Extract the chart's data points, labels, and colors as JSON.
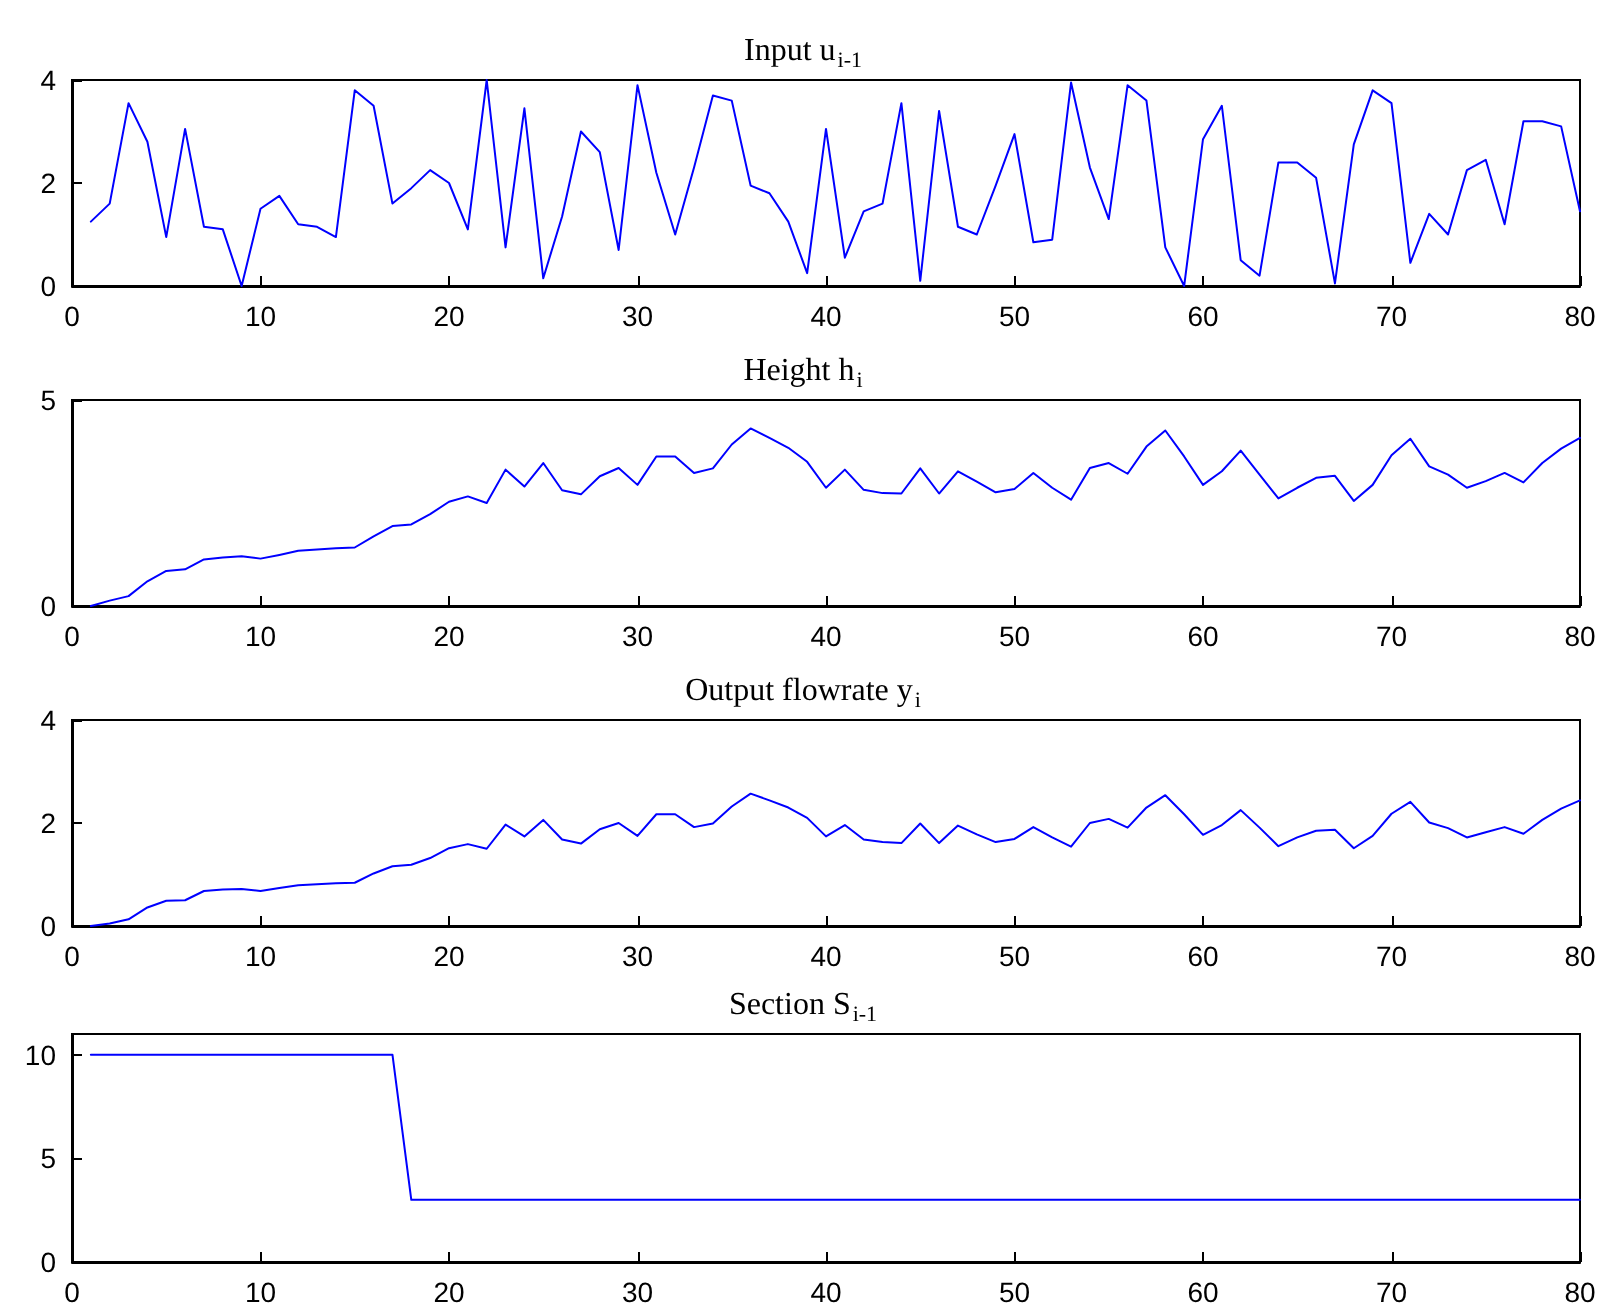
{
  "chart_data": [
    {
      "type": "line",
      "title": "Input u$_{i-1}$",
      "color": "#0000ff",
      "marker": "none",
      "grid": false,
      "xlim": [
        0,
        80
      ],
      "xticks": [
        0,
        10,
        20,
        30,
        40,
        50,
        60,
        70,
        80
      ],
      "ylim": [
        0,
        4
      ],
      "yticks": [
        0,
        2,
        4
      ],
      "x": [
        1,
        2,
        3,
        4,
        5,
        6,
        7,
        8,
        9,
        10,
        11,
        12,
        13,
        14,
        15,
        16,
        17,
        18,
        19,
        20,
        21,
        22,
        23,
        24,
        25,
        26,
        27,
        28,
        29,
        30,
        31,
        32,
        33,
        34,
        35,
        36,
        37,
        38,
        39,
        40,
        41,
        42,
        43,
        44,
        45,
        46,
        47,
        48,
        49,
        50,
        51,
        52,
        53,
        54,
        55,
        56,
        57,
        58,
        59,
        60,
        61,
        62,
        63,
        64,
        65,
        66,
        67,
        68,
        69,
        70,
        71,
        72,
        73,
        74,
        75,
        76,
        77,
        78,
        79,
        80
      ],
      "values": [
        1.25,
        1.6,
        3.55,
        2.8,
        0.95,
        3.05,
        1.15,
        1.1,
        0,
        1.5,
        1.75,
        1.2,
        1.15,
        0.95,
        3.8,
        3.5,
        1.6,
        1.9,
        2.25,
        2.0,
        1.1,
        4.0,
        0.75,
        3.45,
        0.15,
        1.35,
        3.0,
        2.6,
        0.7,
        3.9,
        2.2,
        1.0,
        2.3,
        3.7,
        3.6,
        1.95,
        1.8,
        1.25,
        0.25,
        3.05,
        0.55,
        1.45,
        1.6,
        3.55,
        0.1,
        3.4,
        1.15,
        1.0,
        1.95,
        2.95,
        0.85,
        0.9,
        3.95,
        2.3,
        1.3,
        3.9,
        3.6,
        0.75,
        0,
        2.85,
        3.5,
        0.5,
        0.2,
        2.4,
        2.4,
        2.1,
        0.05,
        2.75,
        3.8,
        3.55,
        0.45,
        1.4,
        1.0,
        2.25,
        2.45,
        1.2,
        3.2,
        3.2,
        3.1,
        1.45
      ]
    },
    {
      "type": "line",
      "title": "Height h$_{i}$",
      "color": "#0000ff",
      "marker": "none",
      "grid": false,
      "xlim": [
        0,
        80
      ],
      "xticks": [
        0,
        10,
        20,
        30,
        40,
        50,
        60,
        70,
        80
      ],
      "ylim": [
        0,
        5
      ],
      "yticks": [
        0,
        5
      ],
      "x": [
        1,
        2,
        3,
        4,
        5,
        6,
        7,
        8,
        9,
        10,
        11,
        12,
        13,
        14,
        15,
        16,
        17,
        18,
        19,
        20,
        21,
        22,
        23,
        24,
        25,
        26,
        27,
        28,
        29,
        30,
        31,
        32,
        33,
        34,
        35,
        36,
        37,
        38,
        39,
        40,
        41,
        42,
        43,
        44,
        45,
        46,
        47,
        48,
        49,
        50,
        51,
        52,
        53,
        54,
        55,
        56,
        57,
        58,
        59,
        60,
        61,
        62,
        63,
        64,
        65,
        66,
        67,
        68,
        69,
        70,
        71,
        72,
        73,
        74,
        75,
        76,
        77,
        78,
        79,
        80
      ],
      "values": [
        0,
        0.13,
        0.24,
        0.6,
        0.85,
        0.89,
        1.13,
        1.18,
        1.21,
        1.15,
        1.24,
        1.34,
        1.37,
        1.4,
        1.42,
        1.69,
        1.94,
        1.98,
        2.23,
        2.53,
        2.66,
        2.5,
        3.31,
        2.9,
        3.47,
        2.81,
        2.71,
        3.15,
        3.35,
        2.94,
        3.63,
        3.63,
        3.23,
        3.34,
        3.92,
        4.31,
        4.08,
        3.84,
        3.5,
        2.87,
        3.31,
        2.82,
        2.74,
        2.73,
        3.34,
        2.73,
        3.27,
        3.02,
        2.76,
        2.84,
        3.23,
        2.87,
        2.58,
        3.35,
        3.47,
        3.21,
        3.87,
        4.26,
        3.63,
        2.94,
        3.27,
        3.77,
        3.19,
        2.61,
        2.87,
        3.11,
        3.16,
        2.55,
        2.94,
        3.66,
        4.06,
        3.39,
        3.19,
        2.87,
        3.03,
        3.23,
        3.0,
        3.47,
        3.82,
        4.08
      ]
    },
    {
      "type": "line",
      "title": "Output flowrate y$_{i}$",
      "color": "#0000ff",
      "marker": "none",
      "grid": false,
      "xlim": [
        0,
        80
      ],
      "xticks": [
        0,
        10,
        20,
        30,
        40,
        50,
        60,
        70,
        80
      ],
      "ylim": [
        0,
        4
      ],
      "yticks": [
        0,
        2,
        4
      ],
      "x": [
        1,
        2,
        3,
        4,
        5,
        6,
        7,
        8,
        9,
        10,
        11,
        12,
        13,
        14,
        15,
        16,
        17,
        18,
        19,
        20,
        21,
        22,
        23,
        24,
        25,
        26,
        27,
        28,
        29,
        30,
        31,
        32,
        33,
        34,
        35,
        36,
        37,
        38,
        39,
        40,
        41,
        42,
        43,
        44,
        45,
        46,
        47,
        48,
        49,
        50,
        51,
        52,
        53,
        54,
        55,
        56,
        57,
        58,
        59,
        60,
        61,
        62,
        63,
        64,
        65,
        66,
        67,
        68,
        69,
        70,
        71,
        72,
        73,
        74,
        75,
        76,
        77,
        78,
        79,
        80
      ],
      "values": [
        0,
        0.05,
        0.13,
        0.36,
        0.49,
        0.5,
        0.68,
        0.71,
        0.72,
        0.68,
        0.74,
        0.79,
        0.81,
        0.83,
        0.84,
        1.02,
        1.16,
        1.19,
        1.32,
        1.51,
        1.59,
        1.5,
        1.97,
        1.74,
        2.06,
        1.68,
        1.6,
        1.88,
        2.0,
        1.75,
        2.17,
        2.17,
        1.92,
        1.99,
        2.32,
        2.57,
        2.44,
        2.3,
        2.1,
        1.74,
        1.96,
        1.68,
        1.63,
        1.61,
        1.99,
        1.61,
        1.95,
        1.78,
        1.63,
        1.69,
        1.92,
        1.72,
        1.54,
        2.0,
        2.08,
        1.91,
        2.3,
        2.54,
        2.17,
        1.77,
        1.96,
        2.25,
        1.91,
        1.55,
        1.72,
        1.85,
        1.87,
        1.51,
        1.75,
        2.18,
        2.41,
        2.01,
        1.9,
        1.72,
        1.82,
        1.92,
        1.79,
        2.06,
        2.28,
        2.44
      ]
    },
    {
      "type": "line",
      "title": "Section S$_{i-1}$",
      "color": "#0000ff",
      "marker": "none",
      "grid": false,
      "xlim": [
        0,
        80
      ],
      "xticks": [
        0,
        10,
        20,
        30,
        40,
        50,
        60,
        70,
        80
      ],
      "ylim": [
        0,
        11
      ],
      "yticks": [
        0,
        5,
        10
      ],
      "x": [
        1,
        2,
        3,
        4,
        5,
        6,
        7,
        8,
        9,
        10,
        11,
        12,
        13,
        14,
        15,
        16,
        17,
        18,
        19,
        20,
        21,
        22,
        23,
        24,
        25,
        26,
        27,
        28,
        29,
        30,
        31,
        32,
        33,
        34,
        35,
        36,
        37,
        38,
        39,
        40,
        41,
        42,
        43,
        44,
        45,
        46,
        47,
        48,
        49,
        50,
        51,
        52,
        53,
        54,
        55,
        56,
        57,
        58,
        59,
        60,
        61,
        62,
        63,
        64,
        65,
        66,
        67,
        68,
        69,
        70,
        71,
        72,
        73,
        74,
        75,
        76,
        77,
        78,
        79,
        80
      ],
      "values": [
        10,
        10,
        10,
        10,
        10,
        10,
        10,
        10,
        10,
        10,
        10,
        10,
        10,
        10,
        10,
        10,
        10,
        3,
        3,
        3,
        3,
        3,
        3,
        3,
        3,
        3,
        3,
        3,
        3,
        3,
        3,
        3,
        3,
        3,
        3,
        3,
        3,
        3,
        3,
        3,
        3,
        3,
        3,
        3,
        3,
        3,
        3,
        3,
        3,
        3,
        3,
        3,
        3,
        3,
        3,
        3,
        3,
        3,
        3,
        3,
        3,
        3,
        3,
        3,
        3,
        3,
        3,
        3,
        3,
        3,
        3,
        3,
        3,
        3,
        3,
        3,
        3,
        3,
        3,
        3
      ]
    }
  ]
}
